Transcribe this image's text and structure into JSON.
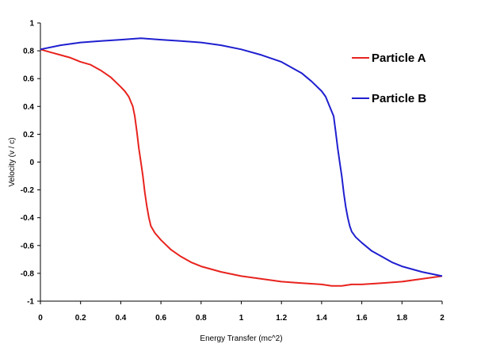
{
  "chart_data": {
    "type": "line",
    "title": "",
    "xlabel": "Energy Transfer (mc^2)",
    "ylabel": "Velocity (v / c)",
    "xlim": [
      0,
      2
    ],
    "ylim": [
      -1,
      1
    ],
    "xticks": [
      0,
      0.2,
      0.4,
      0.6,
      0.8,
      1,
      1.2,
      1.4,
      1.6,
      1.8,
      2
    ],
    "yticks": [
      -1,
      -0.8,
      -0.6,
      -0.4,
      -0.2,
      0,
      0.2,
      0.4,
      0.6,
      0.8,
      1
    ],
    "xtick_labels": [
      "0",
      "0.2",
      "0.4",
      "0.6",
      "0.8",
      "1",
      "1.2",
      "1.4",
      "1.6",
      "1.8",
      "2"
    ],
    "ytick_labels": [
      "-1",
      "-0.8",
      "-0.6",
      "-0.4",
      "-0.2",
      "0",
      "0.2",
      "0.4",
      "0.6",
      "0.8",
      "1"
    ],
    "grid": false,
    "legend_position": "top-right",
    "series": [
      {
        "name": "Particle A",
        "color": "#e8231e",
        "x": [
          0,
          0.05,
          0.1,
          0.15,
          0.2,
          0.25,
          0.3,
          0.35,
          0.4,
          0.42,
          0.44,
          0.46,
          0.47,
          0.48,
          0.49,
          0.5,
          0.51,
          0.52,
          0.53,
          0.54,
          0.55,
          0.57,
          0.6,
          0.65,
          0.7,
          0.75,
          0.8,
          0.9,
          1.0,
          1.1,
          1.2,
          1.3,
          1.4,
          1.45,
          1.5,
          1.55,
          1.6,
          1.7,
          1.8,
          1.9,
          2.0
        ],
        "y": [
          0.81,
          0.79,
          0.77,
          0.75,
          0.72,
          0.7,
          0.66,
          0.61,
          0.54,
          0.51,
          0.47,
          0.4,
          0.33,
          0.22,
          0.1,
          0.0,
          -0.1,
          -0.22,
          -0.32,
          -0.4,
          -0.46,
          -0.51,
          -0.56,
          -0.63,
          -0.68,
          -0.72,
          -0.75,
          -0.79,
          -0.82,
          -0.84,
          -0.86,
          -0.87,
          -0.88,
          -0.89,
          -0.89,
          -0.88,
          -0.88,
          -0.87,
          -0.86,
          -0.84,
          -0.82
        ]
      },
      {
        "name": "Particle B",
        "color": "#1f1fd0",
        "x": [
          0,
          0.1,
          0.2,
          0.3,
          0.4,
          0.5,
          0.6,
          0.7,
          0.8,
          0.9,
          1.0,
          1.1,
          1.2,
          1.3,
          1.35,
          1.4,
          1.42,
          1.44,
          1.46,
          1.47,
          1.48,
          1.49,
          1.5,
          1.51,
          1.52,
          1.53,
          1.54,
          1.55,
          1.57,
          1.6,
          1.65,
          1.7,
          1.75,
          1.8,
          1.9,
          2.0
        ],
        "y": [
          0.81,
          0.84,
          0.86,
          0.87,
          0.88,
          0.89,
          0.88,
          0.87,
          0.86,
          0.84,
          0.81,
          0.77,
          0.72,
          0.64,
          0.58,
          0.51,
          0.47,
          0.4,
          0.33,
          0.22,
          0.1,
          0.0,
          -0.1,
          -0.22,
          -0.32,
          -0.4,
          -0.46,
          -0.5,
          -0.54,
          -0.58,
          -0.64,
          -0.68,
          -0.72,
          -0.75,
          -0.79,
          -0.82
        ]
      }
    ]
  }
}
